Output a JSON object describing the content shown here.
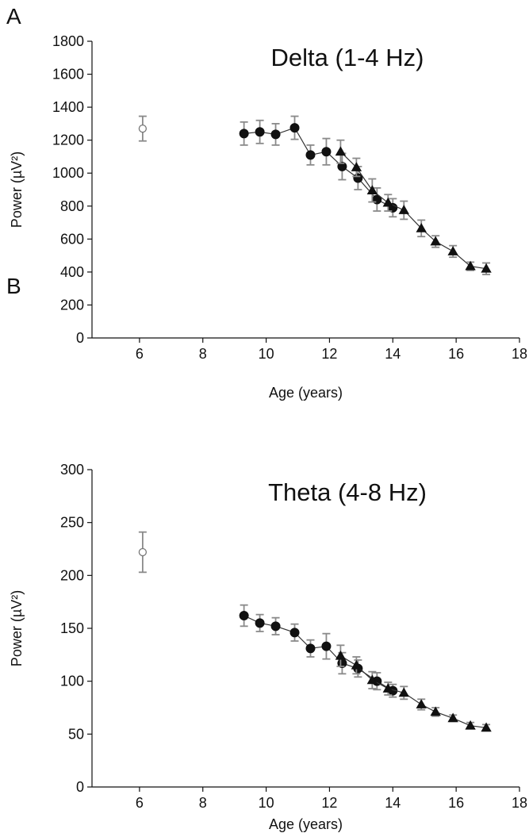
{
  "panels": {
    "a": {
      "letter": "A"
    },
    "b": {
      "letter": "B"
    }
  },
  "colors": {
    "axis": "#111111",
    "line": "#333333",
    "error_bar": "#8a8a8a",
    "marker_filled": "#111111",
    "marker_open": "#ffffff"
  },
  "chart_data": [
    {
      "type": "scatter",
      "title": "Delta (1-4 Hz)",
      "xlabel": "Age (years)",
      "ylabel": "Power (µV²)",
      "xlim": [
        4.5,
        18
      ],
      "ylim": [
        0,
        1800
      ],
      "xticks": [
        6,
        8,
        10,
        12,
        14,
        16,
        18
      ],
      "yticks": [
        0,
        200,
        400,
        600,
        800,
        1000,
        1200,
        1400,
        1600,
        1800
      ],
      "grid": false,
      "series": [
        {
          "name": "Open circle",
          "marker": "open-circle",
          "connected": false,
          "points": [
            {
              "x": 6.1,
              "y": 1270,
              "err": 75
            }
          ]
        },
        {
          "name": "Filled circles",
          "marker": "circle",
          "connected": true,
          "points": [
            {
              "x": 9.3,
              "y": 1240,
              "err": 70
            },
            {
              "x": 9.8,
              "y": 1250,
              "err": 70
            },
            {
              "x": 10.3,
              "y": 1235,
              "err": 65
            },
            {
              "x": 10.9,
              "y": 1275,
              "err": 70
            },
            {
              "x": 11.4,
              "y": 1110,
              "err": 60
            },
            {
              "x": 11.9,
              "y": 1130,
              "err": 80
            },
            {
              "x": 12.4,
              "y": 1040,
              "err": 80
            },
            {
              "x": 12.9,
              "y": 970,
              "err": 70
            },
            {
              "x": 13.5,
              "y": 840,
              "err": 70
            },
            {
              "x": 14.0,
              "y": 790,
              "err": 55
            }
          ]
        },
        {
          "name": "Filled triangles",
          "marker": "triangle",
          "connected": true,
          "points": [
            {
              "x": 12.35,
              "y": 1130,
              "err": 70
            },
            {
              "x": 12.85,
              "y": 1035,
              "err": 55
            },
            {
              "x": 13.35,
              "y": 895,
              "err": 70
            },
            {
              "x": 13.85,
              "y": 820,
              "err": 50
            },
            {
              "x": 14.35,
              "y": 775,
              "err": 55
            },
            {
              "x": 14.9,
              "y": 665,
              "err": 50
            },
            {
              "x": 15.35,
              "y": 585,
              "err": 35
            },
            {
              "x": 15.9,
              "y": 525,
              "err": 35
            },
            {
              "x": 16.45,
              "y": 435,
              "err": 25
            },
            {
              "x": 16.95,
              "y": 420,
              "err": 35
            }
          ]
        }
      ]
    },
    {
      "type": "scatter",
      "title": "Theta (4-8 Hz)",
      "xlabel": "Age (years)",
      "ylabel": "Power (µV²)",
      "xlim": [
        4.5,
        18
      ],
      "ylim": [
        0,
        300
      ],
      "xticks": [
        6,
        8,
        10,
        12,
        14,
        16,
        18
      ],
      "yticks": [
        0,
        50,
        100,
        150,
        200,
        250,
        300
      ],
      "grid": false,
      "series": [
        {
          "name": "Open circle",
          "marker": "open-circle",
          "connected": false,
          "points": [
            {
              "x": 6.1,
              "y": 222,
              "err": 19
            }
          ]
        },
        {
          "name": "Filled circles",
          "marker": "circle",
          "connected": true,
          "points": [
            {
              "x": 9.3,
              "y": 162,
              "err": 10
            },
            {
              "x": 9.8,
              "y": 155,
              "err": 8
            },
            {
              "x": 10.3,
              "y": 152,
              "err": 8
            },
            {
              "x": 10.9,
              "y": 146,
              "err": 8
            },
            {
              "x": 11.4,
              "y": 131,
              "err": 8
            },
            {
              "x": 11.9,
              "y": 133,
              "err": 12
            },
            {
              "x": 12.4,
              "y": 117,
              "err": 10
            },
            {
              "x": 12.9,
              "y": 112,
              "err": 8
            },
            {
              "x": 13.5,
              "y": 100,
              "err": 8
            },
            {
              "x": 14.0,
              "y": 91,
              "err": 6
            }
          ]
        },
        {
          "name": "Filled triangles",
          "marker": "triangle",
          "connected": true,
          "points": [
            {
              "x": 12.35,
              "y": 124,
              "err": 10
            },
            {
              "x": 12.85,
              "y": 115,
              "err": 8
            },
            {
              "x": 13.35,
              "y": 101,
              "err": 8
            },
            {
              "x": 13.85,
              "y": 93,
              "err": 6
            },
            {
              "x": 14.35,
              "y": 89,
              "err": 6
            },
            {
              "x": 14.9,
              "y": 78,
              "err": 5
            },
            {
              "x": 15.35,
              "y": 71,
              "err": 4
            },
            {
              "x": 15.9,
              "y": 65,
              "err": 3
            },
            {
              "x": 16.45,
              "y": 58,
              "err": 3
            },
            {
              "x": 16.95,
              "y": 56,
              "err": 3
            }
          ]
        }
      ]
    }
  ]
}
